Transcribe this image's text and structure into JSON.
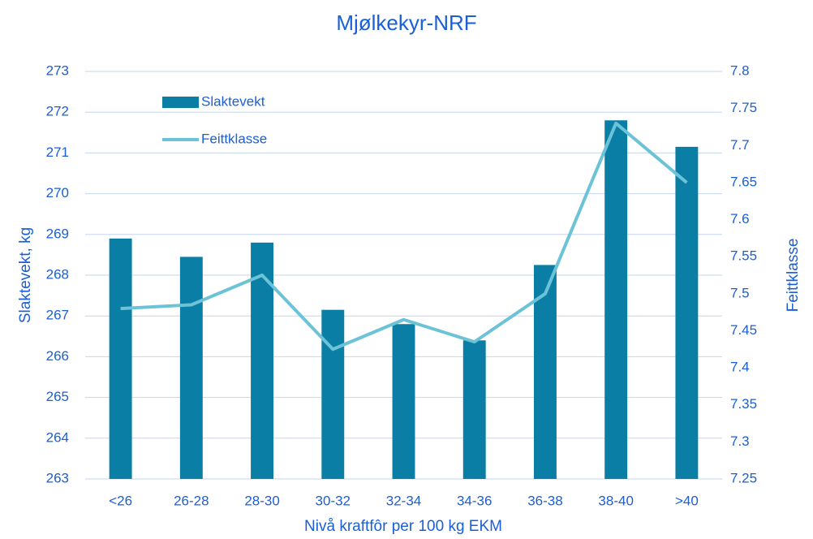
{
  "chart_data": {
    "type": "bar_line",
    "title": "Mjølkekyr-NRF",
    "xlabel": "Nivå kraftfôr per 100 kg EKM",
    "ylabel": "Slaktevekt, kg",
    "y2label": "Feittklasse",
    "categories": [
      "<26",
      "26-28",
      "28-30",
      "30-32",
      "32-34",
      "34-36",
      "36-38",
      "38-40",
      ">40"
    ],
    "series": [
      {
        "name": "Slaktevekt",
        "type": "bar",
        "axis": "y",
        "color": "#0b7ea6",
        "values": [
          268.9,
          268.45,
          268.8,
          267.15,
          266.8,
          266.4,
          268.25,
          271.8,
          271.15
        ]
      },
      {
        "name": "Feittklasse",
        "type": "line",
        "axis": "y2",
        "color": "#6cc3d8",
        "values": [
          7.48,
          7.485,
          7.525,
          7.425,
          7.465,
          7.435,
          7.5,
          7.73,
          7.65
        ]
      }
    ],
    "ylim": [
      263,
      273
    ],
    "yticks": [
      263,
      264,
      265,
      266,
      267,
      268,
      269,
      270,
      271,
      272,
      273
    ],
    "y2lim": [
      7.25,
      7.8
    ],
    "y2ticks": [
      7.25,
      7.3,
      7.35,
      7.4,
      7.45,
      7.5,
      7.55,
      7.6,
      7.65,
      7.7,
      7.75,
      7.8
    ],
    "grid": true,
    "legend": "upper left"
  }
}
